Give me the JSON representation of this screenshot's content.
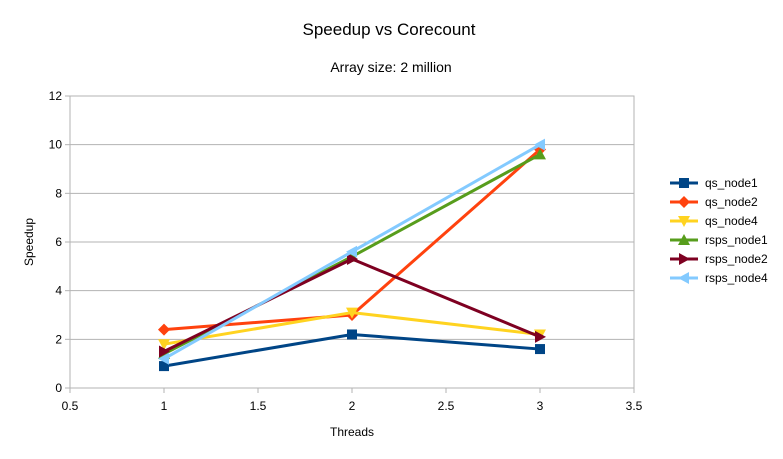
{
  "chart_data": {
    "type": "line",
    "title": "Speedup vs Corecount",
    "subtitle": "Array size: 2 million",
    "xlabel": "Threads",
    "ylabel": "Speedup",
    "xlim": [
      0.5,
      3.5
    ],
    "ylim": [
      0,
      12
    ],
    "xticks": [
      "0.5",
      "1",
      "1.5",
      "2",
      "2.5",
      "3",
      "3.5"
    ],
    "yticks": [
      "0",
      "2",
      "4",
      "6",
      "8",
      "10",
      "12"
    ],
    "grid": "horizontal",
    "legend_position": "right",
    "x": [
      1,
      2,
      3
    ],
    "series": [
      {
        "name": "qs_node1",
        "values": [
          0.9,
          2.2,
          1.6
        ],
        "color": "#004586",
        "marker": "square"
      },
      {
        "name": "qs_node2",
        "values": [
          2.4,
          3.0,
          9.8
        ],
        "color": "#ff420e",
        "marker": "diamond"
      },
      {
        "name": "qs_node4",
        "values": [
          1.8,
          3.1,
          2.2
        ],
        "color": "#ffd320",
        "marker": "triangle-down"
      },
      {
        "name": "rsps_node1",
        "values": [
          1.4,
          5.4,
          9.6
        ],
        "color": "#579d1c",
        "marker": "triangle-up"
      },
      {
        "name": "rsps_node2",
        "values": [
          1.5,
          5.3,
          2.1
        ],
        "color": "#7e0021",
        "marker": "triangle-right"
      },
      {
        "name": "rsps_node4",
        "values": [
          1.2,
          5.6,
          10.0
        ],
        "color": "#83caff",
        "marker": "triangle-left"
      }
    ]
  }
}
